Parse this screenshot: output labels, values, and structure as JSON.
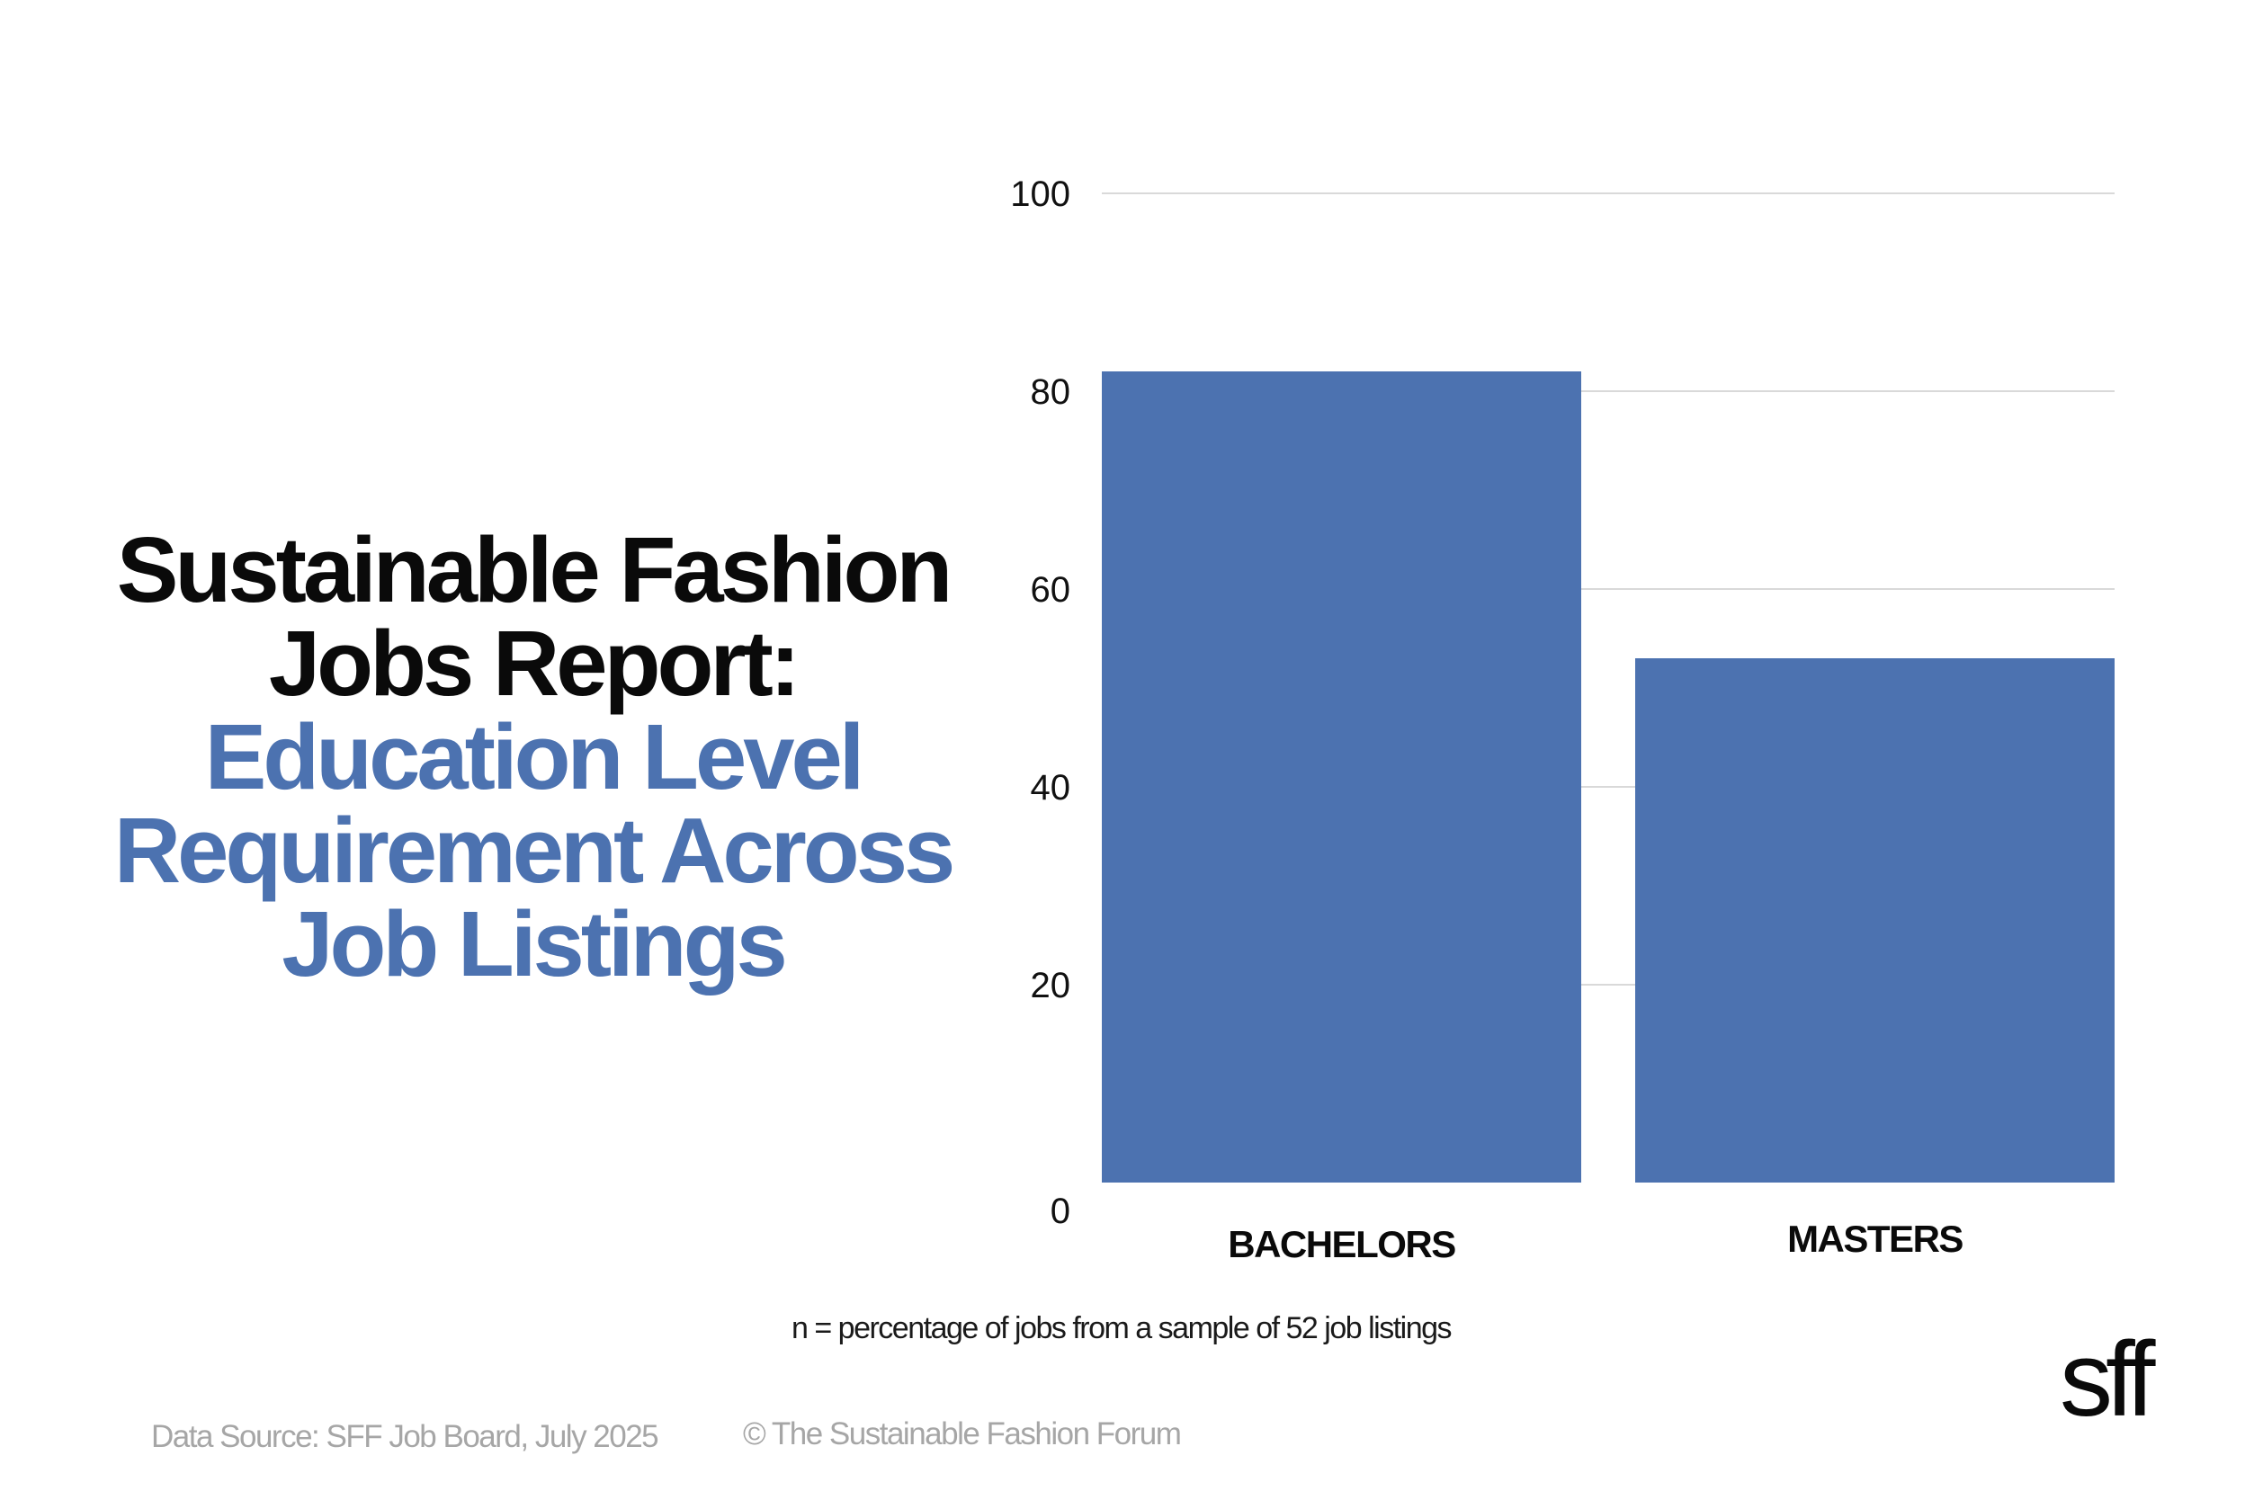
{
  "title": {
    "line1": "Sustainable Fashion",
    "line2": "Jobs Report:",
    "line3": "Education Level",
    "line4": "Requirement Across",
    "line5": "Job Listings"
  },
  "colors": {
    "bar": "#4c72b0",
    "title_accent": "#4c72b0",
    "title_main": "#0a0a0a",
    "grid": "#d9d9d9",
    "muted_text": "#a6a6a6"
  },
  "chart_data": {
    "type": "bar",
    "categories": [
      "BACHELORS",
      "MASTERS"
    ],
    "values": [
      82,
      53
    ],
    "title": "",
    "xlabel": "",
    "ylabel": "",
    "ylim": [
      0,
      100
    ],
    "yticks": [
      0,
      20,
      40,
      60,
      80,
      100
    ],
    "grid": true
  },
  "footnote": "n = percentage of jobs from a sample of 52 job listings",
  "source": "Data Source: SFF Job Board, July 2025",
  "copyright": "© The Sustainable Fashion Forum",
  "logo": "sff"
}
